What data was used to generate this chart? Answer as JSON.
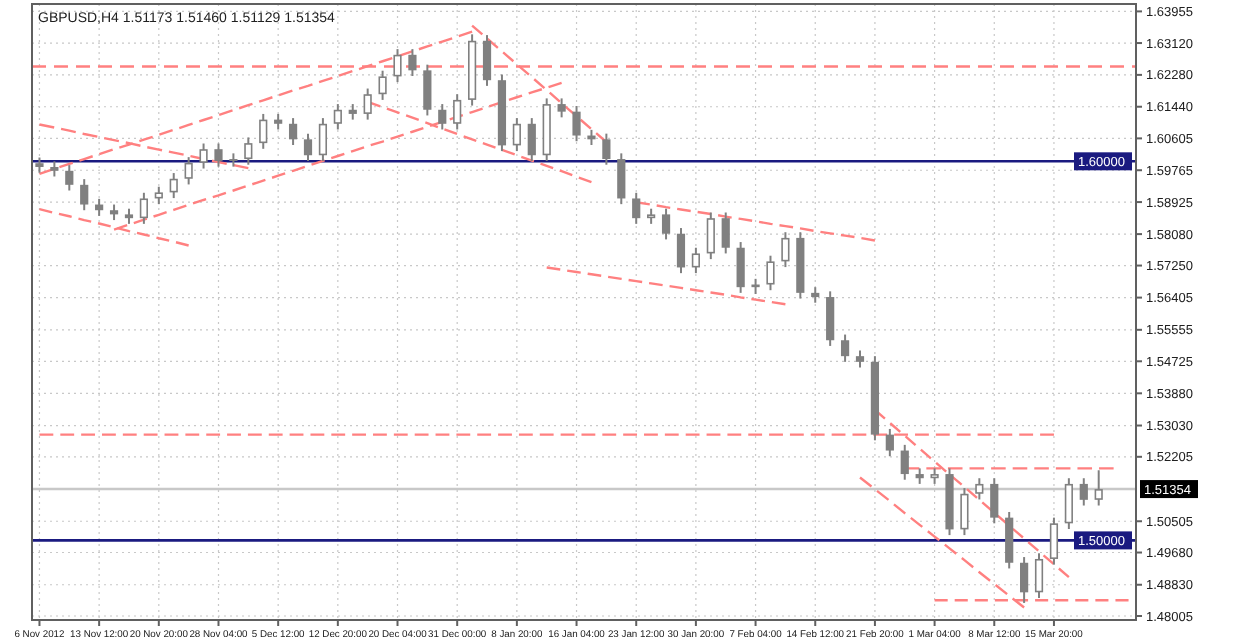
{
  "chart_data": {
    "type": "candlestick",
    "title": "GBPUSD,H4  1.51173 1.51460 1.51129 1.51354",
    "color": "#808080",
    "categories": [
      "6 Nov 2012",
      null,
      null,
      null,
      "13 Nov 12:00",
      null,
      null,
      null,
      "20 Nov 20:00",
      null,
      null,
      null,
      "28 Nov 04:00",
      null,
      null,
      null,
      "5 Dec 12:00",
      null,
      null,
      null,
      "12 Dec 20:00",
      null,
      null,
      null,
      "20 Dec 04:00",
      null,
      null,
      null,
      "31 Dec 00:00",
      null,
      null,
      null,
      "8 Jan 20:00",
      null,
      null,
      null,
      "16 Jan 04:00",
      null,
      null,
      null,
      "23 Jan 12:00",
      null,
      null,
      null,
      "30 Jan 20:00",
      null,
      null,
      null,
      "7 Feb 04:00",
      null,
      null,
      null,
      "14 Feb 12:00",
      null,
      null,
      null,
      "21 Feb 20:00",
      null,
      null,
      null,
      "1 Mar 04:00",
      null,
      null,
      null,
      "8 Mar 12:00",
      null,
      null,
      null,
      "15 Mar 20:00",
      null,
      null,
      null,
      null,
      null
    ],
    "ohlc": [
      [
        1.5995,
        1.601,
        1.597,
        1.5985
      ],
      [
        1.5985,
        1.6,
        1.596,
        1.5975
      ],
      [
        1.5975,
        1.599,
        1.5923,
        1.5938
      ],
      [
        1.5938,
        1.5953,
        1.5871,
        1.5886
      ],
      [
        1.5886,
        1.5901,
        1.5856,
        1.5871
      ],
      [
        1.5871,
        1.5886,
        1.5845,
        1.586
      ],
      [
        1.586,
        1.5875,
        1.5835,
        1.585
      ],
      [
        1.585,
        1.5917,
        1.5835,
        1.5902
      ],
      [
        1.5902,
        1.5933,
        1.5887,
        1.5918
      ],
      [
        1.5918,
        1.5969,
        1.5903,
        1.5954
      ],
      [
        1.5954,
        1.6011,
        1.5939,
        1.5996
      ],
      [
        1.5996,
        1.6047,
        1.5981,
        1.6032
      ],
      [
        1.6032,
        1.6047,
        1.5986,
        1.6001
      ],
      [
        1.6001,
        1.6021,
        1.5986,
        1.6006
      ],
      [
        1.6006,
        1.6063,
        1.5991,
        1.6048
      ],
      [
        1.6048,
        1.6125,
        1.6033,
        1.611
      ],
      [
        1.611,
        1.6125,
        1.6084,
        1.6099
      ],
      [
        1.6099,
        1.6114,
        1.6043,
        1.6058
      ],
      [
        1.6058,
        1.6073,
        1.6001,
        1.6016
      ],
      [
        1.6016,
        1.6114,
        1.6001,
        1.6099
      ],
      [
        1.6099,
        1.6151,
        1.6084,
        1.6136
      ],
      [
        1.6136,
        1.6151,
        1.611,
        1.6125
      ],
      [
        1.6125,
        1.6192,
        1.611,
        1.6177
      ],
      [
        1.6177,
        1.6239,
        1.6162,
        1.6224
      ],
      [
        1.6224,
        1.6296,
        1.6209,
        1.6281
      ],
      [
        1.6281,
        1.6296,
        1.6225,
        1.624
      ],
      [
        1.624,
        1.6255,
        1.6121,
        1.6136
      ],
      [
        1.6136,
        1.6151,
        1.6084,
        1.6099
      ],
      [
        1.6099,
        1.6177,
        1.6084,
        1.6162
      ],
      [
        1.6162,
        1.6335,
        1.6147,
        1.6318
      ],
      [
        1.6318,
        1.6333,
        1.6199,
        1.6214
      ],
      [
        1.6214,
        1.6229,
        1.6027,
        1.6042
      ],
      [
        1.6042,
        1.6114,
        1.6027,
        1.6099
      ],
      [
        1.6099,
        1.6114,
        1.6001,
        1.6016
      ],
      [
        1.6016,
        1.6166,
        1.6001,
        1.6151
      ],
      [
        1.6151,
        1.6166,
        1.6116,
        1.6131
      ],
      [
        1.6131,
        1.6146,
        1.6053,
        1.6068
      ],
      [
        1.6068,
        1.6083,
        1.6043,
        1.6058
      ],
      [
        1.6058,
        1.6073,
        1.5991,
        1.6006
      ],
      [
        1.6006,
        1.6021,
        1.5887,
        1.5902
      ],
      [
        1.5902,
        1.5917,
        1.5835,
        1.585
      ],
      [
        1.585,
        1.5875,
        1.5835,
        1.586
      ],
      [
        1.586,
        1.5875,
        1.5794,
        1.5809
      ],
      [
        1.5809,
        1.5824,
        1.5705,
        1.572
      ],
      [
        1.572,
        1.5772,
        1.5705,
        1.5757
      ],
      [
        1.5757,
        1.5865,
        1.5742,
        1.585
      ],
      [
        1.585,
        1.5865,
        1.5757,
        1.5772
      ],
      [
        1.5772,
        1.5787,
        1.5653,
        1.5668
      ],
      [
        1.5668,
        1.569,
        1.565,
        1.5675
      ],
      [
        1.5675,
        1.5751,
        1.566,
        1.5736
      ],
      [
        1.5736,
        1.5813,
        1.5721,
        1.5798
      ],
      [
        1.5798,
        1.5813,
        1.5638,
        1.5653
      ],
      [
        1.5653,
        1.5668,
        1.5627,
        1.5642
      ],
      [
        1.5642,
        1.5657,
        1.5513,
        1.5528
      ],
      [
        1.5528,
        1.5543,
        1.5471,
        1.5486
      ],
      [
        1.5486,
        1.5501,
        1.5456,
        1.5471
      ],
      [
        1.5471,
        1.5486,
        1.5264,
        1.5279
      ],
      [
        1.5279,
        1.5294,
        1.5222,
        1.5237
      ],
      [
        1.5237,
        1.5252,
        1.516,
        1.5175
      ],
      [
        1.5175,
        1.519,
        1.5149,
        1.5164
      ],
      [
        1.5164,
        1.519,
        1.5149,
        1.5175
      ],
      [
        1.5175,
        1.519,
        1.5014,
        1.5029
      ],
      [
        1.5029,
        1.5138,
        1.5014,
        1.5123
      ],
      [
        1.5123,
        1.5164,
        1.5108,
        1.5149
      ],
      [
        1.5149,
        1.5164,
        1.5045,
        1.506
      ],
      [
        1.506,
        1.5075,
        1.4926,
        1.4941
      ],
      [
        1.4941,
        1.4956,
        1.4835,
        1.4863
      ],
      [
        1.4863,
        1.4966,
        1.4848,
        1.4951
      ],
      [
        1.4951,
        1.506,
        1.4936,
        1.5045
      ],
      [
        1.5045,
        1.5164,
        1.503,
        1.5149
      ],
      [
        1.5149,
        1.5164,
        1.5092,
        1.5107
      ],
      [
        1.5107,
        1.5185,
        1.5092,
        1.51354
      ],
      null,
      null
    ],
    "series": [
      {
        "type": "line",
        "color": "#ff8080",
        "line_style": "dashed",
        "values": [
          1.5967,
          1.598,
          1.5993,
          1.6006,
          1.6019,
          1.6032,
          1.6044,
          1.6057,
          1.607,
          1.6083,
          1.6096,
          1.6109,
          1.6122,
          1.6135,
          1.6148,
          1.6161,
          1.6174,
          1.6187,
          1.6199,
          1.6212,
          1.6225,
          1.6238,
          1.6251,
          1.6264,
          1.6277,
          1.629,
          1.6303,
          1.6316,
          1.6329,
          1.6342,
          null,
          null,
          null,
          null,
          null,
          null,
          null,
          null,
          null,
          null,
          null,
          null,
          null,
          null,
          null,
          null,
          null,
          null,
          null,
          null,
          null,
          null,
          null,
          null,
          null,
          null,
          null,
          null,
          null,
          null,
          null,
          null,
          null,
          null,
          null,
          null,
          null,
          null,
          null,
          null,
          null,
          null,
          null,
          null
        ]
      },
      {
        "type": "line",
        "color": "#ff8080",
        "line_style": "dashed",
        "values": [
          null,
          null,
          null,
          null,
          null,
          1.582,
          1.5833,
          1.5846,
          1.5859,
          1.5872,
          1.5885,
          1.5898,
          1.591,
          1.5923,
          1.5936,
          1.5949,
          1.5962,
          1.5975,
          1.5988,
          1.6001,
          1.6014,
          1.6027,
          1.604,
          1.6052,
          1.6065,
          1.6078,
          1.6091,
          1.6104,
          1.6117,
          1.613,
          1.6143,
          1.6156,
          1.6169,
          1.6182,
          1.6194,
          1.6207,
          null,
          null,
          null,
          null,
          null,
          null,
          null,
          null,
          null,
          null,
          null,
          null,
          null,
          null,
          null,
          null,
          null,
          null,
          null,
          null,
          null,
          null,
          null,
          null,
          null,
          null,
          null,
          null,
          null,
          null,
          null,
          null,
          null,
          null,
          null,
          null,
          null,
          null
        ]
      },
      {
        "type": "line",
        "color": "#ff8080",
        "line_style": "dashed",
        "values": [
          1.6097,
          1.6089,
          1.6081,
          1.6072,
          1.6064,
          1.6056,
          1.6048,
          1.6039,
          1.6031,
          1.6023,
          1.6015,
          1.6006,
          1.5998,
          1.599,
          1.5982,
          null,
          null,
          null,
          null,
          null,
          null,
          null,
          null,
          null,
          null,
          null,
          null,
          null,
          null,
          null,
          null,
          null,
          null,
          null,
          null,
          null,
          null,
          null,
          null,
          null,
          null,
          null,
          null,
          null,
          null,
          null,
          null,
          null,
          null,
          null,
          null,
          null,
          null,
          null,
          null,
          null,
          null,
          null,
          null,
          null,
          null,
          null,
          null,
          null,
          null,
          null,
          null,
          null,
          null,
          null,
          null,
          null,
          null,
          null
        ]
      },
      {
        "type": "line",
        "color": "#ff8080",
        "line_style": "dashed",
        "values": [
          1.5874,
          1.5864,
          1.5855,
          1.5845,
          1.5836,
          1.5826,
          1.5816,
          1.5807,
          1.5797,
          1.5788,
          1.5778,
          null,
          null,
          null,
          null,
          null,
          null,
          null,
          null,
          null,
          null,
          null,
          null,
          null,
          null,
          null,
          null,
          null,
          null,
          null,
          null,
          null,
          null,
          null,
          null,
          null,
          null,
          null,
          null,
          null,
          null,
          null,
          null,
          null,
          null,
          null,
          null,
          null,
          null,
          null,
          null,
          null,
          null,
          null,
          null,
          null,
          null,
          null,
          null,
          null,
          null,
          null,
          null,
          null,
          null,
          null,
          null,
          null,
          null,
          null,
          null,
          null,
          null,
          null
        ]
      },
      {
        "type": "line",
        "color": "#ff8080",
        "line_style": "dashed",
        "values": [
          null,
          null,
          null,
          null,
          null,
          null,
          null,
          null,
          null,
          null,
          null,
          null,
          null,
          null,
          null,
          null,
          null,
          null,
          null,
          null,
          null,
          null,
          1.6157,
          1.6143,
          1.6129,
          1.6115,
          1.6101,
          1.6086,
          1.6072,
          1.6058,
          1.6044,
          1.603,
          1.6016,
          1.6002,
          1.5988,
          1.5974,
          1.5959,
          1.5945,
          null,
          null,
          null,
          null,
          null,
          null,
          null,
          null,
          null,
          null,
          null,
          null,
          null,
          null,
          null,
          null,
          null,
          null,
          null,
          null,
          null,
          null,
          null,
          null,
          null,
          null,
          null,
          null,
          null,
          null,
          null,
          null,
          null,
          null,
          null,
          null
        ]
      },
      {
        "type": "line",
        "color": "#ff8080",
        "line_style": "dashed",
        "values": [
          null,
          null,
          null,
          null,
          null,
          null,
          null,
          null,
          null,
          null,
          null,
          null,
          null,
          null,
          null,
          null,
          null,
          null,
          null,
          null,
          null,
          null,
          null,
          null,
          null,
          null,
          null,
          null,
          null,
          1.6358,
          1.6324,
          1.629,
          1.6256,
          1.6222,
          1.6188,
          1.6153,
          1.6119,
          1.6085,
          1.6051,
          null,
          null,
          null,
          null,
          null,
          null,
          null,
          null,
          null,
          null,
          null,
          null,
          null,
          null,
          null,
          null,
          null,
          null,
          null,
          null,
          null,
          null,
          null,
          null,
          null,
          null,
          null,
          null,
          null,
          null,
          null,
          null,
          null,
          null,
          null
        ]
      },
      {
        "type": "line",
        "color": "#ff8080",
        "line_style": "dashed",
        "values": [
          null,
          null,
          null,
          null,
          null,
          null,
          null,
          null,
          null,
          null,
          null,
          null,
          null,
          null,
          null,
          null,
          null,
          null,
          null,
          null,
          null,
          null,
          null,
          null,
          null,
          null,
          null,
          null,
          null,
          null,
          null,
          null,
          null,
          null,
          null,
          null,
          null,
          null,
          null,
          null,
          1.5892,
          1.5886,
          1.5879,
          1.5873,
          1.5867,
          1.5861,
          1.5854,
          1.5848,
          1.5842,
          1.5835,
          1.5829,
          1.5823,
          1.5816,
          1.581,
          1.5804,
          1.5798,
          1.5791,
          null,
          null,
          null,
          null,
          null,
          null,
          null,
          null,
          null,
          null,
          null,
          null,
          null,
          null,
          null,
          null,
          null
        ]
      },
      {
        "type": "line",
        "color": "#ff8080",
        "line_style": "dashed",
        "values": [
          null,
          null,
          null,
          null,
          null,
          null,
          null,
          null,
          null,
          null,
          null,
          null,
          null,
          null,
          null,
          null,
          null,
          null,
          null,
          null,
          null,
          null,
          null,
          null,
          null,
          null,
          null,
          null,
          null,
          null,
          null,
          null,
          null,
          null,
          1.572,
          1.5714,
          1.5708,
          1.5702,
          1.5696,
          1.569,
          1.5684,
          1.5678,
          1.5672,
          1.5666,
          1.566,
          1.5654,
          1.5648,
          1.5641,
          1.5635,
          1.5629,
          1.5623,
          null,
          null,
          null,
          null,
          null,
          null,
          null,
          null,
          null,
          null,
          null,
          null,
          null,
          null,
          null,
          null,
          null,
          null,
          null,
          null,
          null,
          null,
          null
        ]
      },
      {
        "type": "line",
        "color": "#ff8080",
        "line_style": "dashed",
        "values": [
          1.5279,
          1.5279,
          1.5279,
          1.5279,
          1.5279,
          1.5279,
          1.5279,
          1.5279,
          1.5279,
          1.5279,
          1.5279,
          1.5279,
          1.5279,
          1.5279,
          1.5279,
          1.5279,
          1.5279,
          1.5279,
          1.5279,
          1.5279,
          1.5279,
          1.5279,
          1.5279,
          1.5279,
          1.5279,
          1.5279,
          1.5279,
          1.5279,
          1.5279,
          1.5279,
          1.5279,
          1.5279,
          1.5279,
          1.5279,
          1.5279,
          1.5279,
          1.5279,
          1.5279,
          1.5279,
          1.5279,
          1.5279,
          1.5279,
          1.5279,
          1.5279,
          1.5279,
          1.5279,
          1.5279,
          1.5279,
          1.5279,
          1.5279,
          1.5279,
          1.5279,
          1.5279,
          1.5279,
          1.5279,
          1.5279,
          1.5279,
          1.5279,
          1.5279,
          1.5279,
          1.5279,
          1.5279,
          1.5279,
          1.5279,
          1.5279,
          1.5279,
          1.5279,
          1.5279,
          1.5279,
          null,
          null,
          null,
          null,
          null
        ]
      },
      {
        "type": "line",
        "color": "#ff8080",
        "line_style": "dashed",
        "values": [
          null,
          null,
          null,
          null,
          null,
          null,
          null,
          null,
          null,
          null,
          null,
          null,
          null,
          null,
          null,
          null,
          null,
          null,
          null,
          null,
          null,
          null,
          null,
          null,
          null,
          null,
          null,
          null,
          null,
          null,
          null,
          null,
          null,
          null,
          null,
          null,
          null,
          null,
          null,
          null,
          null,
          null,
          null,
          null,
          null,
          null,
          null,
          null,
          null,
          null,
          null,
          null,
          null,
          null,
          null,
          null,
          null,
          null,
          1.519,
          1.519,
          1.519,
          1.519,
          1.519,
          1.519,
          1.519,
          1.519,
          1.519,
          1.519,
          1.519,
          1.519,
          1.519,
          1.519,
          1.519,
          null
        ]
      },
      {
        "type": "line",
        "color": "#ff8080",
        "line_style": "dashed",
        "values": [
          null,
          null,
          null,
          null,
          null,
          null,
          null,
          null,
          null,
          null,
          null,
          null,
          null,
          null,
          null,
          null,
          null,
          null,
          null,
          null,
          null,
          null,
          null,
          null,
          null,
          null,
          null,
          null,
          null,
          null,
          null,
          null,
          null,
          null,
          null,
          null,
          null,
          null,
          null,
          null,
          null,
          null,
          null,
          null,
          null,
          null,
          null,
          null,
          null,
          null,
          null,
          null,
          null,
          null,
          null,
          null,
          null,
          null,
          null,
          null,
          1.4842,
          1.4842,
          1.4842,
          1.4842,
          1.4842,
          1.4842,
          1.4842,
          1.4842,
          1.4842,
          1.4842,
          1.4842,
          1.4842,
          1.4842,
          1.4842
        ]
      },
      {
        "type": "line",
        "color": "#ff8080",
        "line_style": "dashed",
        "values": [
          null,
          null,
          null,
          null,
          null,
          null,
          null,
          null,
          null,
          null,
          null,
          null,
          null,
          null,
          null,
          null,
          null,
          null,
          null,
          null,
          null,
          null,
          null,
          null,
          null,
          null,
          null,
          null,
          null,
          null,
          null,
          null,
          null,
          null,
          null,
          null,
          null,
          null,
          null,
          null,
          null,
          null,
          null,
          null,
          null,
          null,
          null,
          null,
          null,
          null,
          null,
          null,
          null,
          null,
          null,
          null,
          1.5344,
          1.531,
          1.5276,
          1.5242,
          1.5208,
          1.5174,
          1.5141,
          1.5107,
          1.5073,
          1.5039,
          1.5005,
          1.4971,
          1.4937,
          1.4903,
          null,
          null,
          null,
          null
        ]
      },
      {
        "type": "line",
        "color": "#ff8080",
        "line_style": "dashed",
        "values": [
          null,
          null,
          null,
          null,
          null,
          null,
          null,
          null,
          null,
          null,
          null,
          null,
          null,
          null,
          null,
          null,
          null,
          null,
          null,
          null,
          null,
          null,
          null,
          null,
          null,
          null,
          null,
          null,
          null,
          null,
          null,
          null,
          null,
          null,
          null,
          null,
          null,
          null,
          null,
          null,
          null,
          null,
          null,
          null,
          null,
          null,
          null,
          null,
          null,
          null,
          null,
          null,
          null,
          null,
          null,
          1.5166,
          1.5135,
          1.5104,
          1.5072,
          1.5041,
          1.501,
          1.4979,
          1.4948,
          1.4916,
          1.4885,
          1.4854,
          1.4823,
          null,
          null,
          null,
          null,
          null,
          null,
          null
        ]
      }
    ],
    "ylim": [
      1.479,
      1.6415
    ],
    "yticks": [
      {
        "value": 1.63955,
        "label": "1.63955"
      },
      {
        "value": 1.6312,
        "label": "1.63120"
      },
      {
        "value": 1.6228,
        "label": "1.62280"
      },
      {
        "value": 1.6144,
        "label": "1.61440"
      },
      {
        "value": 1.60605,
        "label": "1.60605"
      },
      {
        "value": 1.59765,
        "label": "1.59765"
      },
      {
        "value": 1.58925,
        "label": "1.58925"
      },
      {
        "value": 1.5808,
        "label": "1.58080"
      },
      {
        "value": 1.5725,
        "label": "1.57250"
      },
      {
        "value": 1.56405,
        "label": "1.56405"
      },
      {
        "value": 1.55555,
        "label": "1.55555"
      },
      {
        "value": 1.54725,
        "label": "1.54725"
      },
      {
        "value": 1.5388,
        "label": "1.53880"
      },
      {
        "value": 1.5303,
        "label": "1.53030"
      },
      {
        "value": 1.52205,
        "label": "1.52205"
      },
      {
        "value": 1.50505,
        "label": "1.50505"
      },
      {
        "value": 1.4968,
        "label": "1.49680"
      },
      {
        "value": 1.4883,
        "label": "1.48830"
      },
      {
        "value": 1.48005,
        "label": "1.48005"
      }
    ],
    "ref_lines": [
      {
        "axis": "y",
        "value": 1.6,
        "label": "1.60000",
        "color": "#1a1a80"
      },
      {
        "axis": "y",
        "value": 1.5,
        "label": "1.50000",
        "color": "#1a1a80"
      },
      {
        "axis": "y",
        "value": 1.51354,
        "label": "1.51354",
        "color": "#c8c8c8"
      },
      {
        "axis": "y",
        "value": 1.625,
        "color": "#ff8080",
        "line_style": "dashed"
      }
    ],
    "grid": true
  }
}
